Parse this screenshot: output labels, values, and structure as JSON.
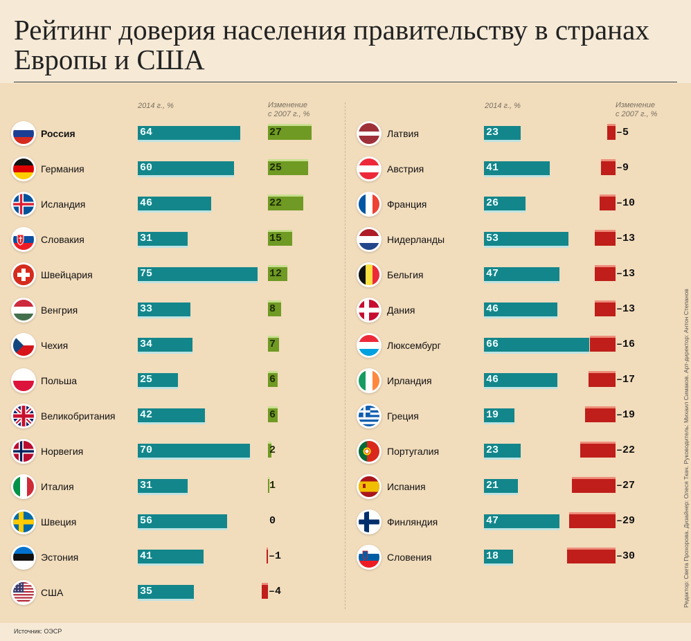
{
  "title": "Рейтинг доверия населения правительству в странах Европы и США",
  "source": "Источник: ОЭСР",
  "credits": "Редактор: Света Прохорова. Дизайнер: Олеся Ткач. Руководитель: Михаил Симаков. Арт-директор: Антон Степанов",
  "colors": {
    "bar": "#13868b",
    "positive": "#6f9a23",
    "negative": "#bf1e1a"
  },
  "chart_data": {
    "type": "bar",
    "title": "Рейтинг доверия населения правительству в странах Европы и США",
    "column_labels": {
      "value": "2014 г., %",
      "change_line1": "Изменение",
      "change_line2": "с 2007 г., %"
    },
    "series": [
      {
        "name": "2014 г., %"
      },
      {
        "name": "Изменение с 2007 г., %"
      }
    ],
    "left": [
      {
        "country": "Россия",
        "flag": "russia-flag",
        "value": 64,
        "change": 27,
        "change_label": "27",
        "bold": true
      },
      {
        "country": "Германия",
        "flag": "germany-flag",
        "value": 60,
        "change": 25,
        "change_label": "25"
      },
      {
        "country": "Исландия",
        "flag": "iceland-flag",
        "value": 46,
        "change": 22,
        "change_label": "22"
      },
      {
        "country": "Словакия",
        "flag": "slovakia-flag",
        "value": 31,
        "change": 15,
        "change_label": "15"
      },
      {
        "country": "Швейцария",
        "flag": "switzerland-flag",
        "value": 75,
        "change": 12,
        "change_label": "12"
      },
      {
        "country": "Венгрия",
        "flag": "hungary-flag",
        "value": 33,
        "change": 8,
        "change_label": "8"
      },
      {
        "country": "Чехия",
        "flag": "czech-flag",
        "value": 34,
        "change": 7,
        "change_label": "7"
      },
      {
        "country": "Польша",
        "flag": "poland-flag",
        "value": 25,
        "change": 6,
        "change_label": "6"
      },
      {
        "country": "Великобритания",
        "flag": "uk-flag",
        "value": 42,
        "change": 6,
        "change_label": "6"
      },
      {
        "country": "Норвегия",
        "flag": "norway-flag",
        "value": 70,
        "change": 2,
        "change_label": "2"
      },
      {
        "country": "Италия",
        "flag": "italy-flag",
        "value": 31,
        "change": 1,
        "change_label": "1"
      },
      {
        "country": "Швеция",
        "flag": "sweden-flag",
        "value": 56,
        "change": 0,
        "change_label": "0"
      },
      {
        "country": "Эстония",
        "flag": "estonia-flag",
        "value": 41,
        "change": -1,
        "change_label": "–1"
      },
      {
        "country": "США",
        "flag": "usa-flag",
        "value": 35,
        "change": -4,
        "change_label": "–4"
      }
    ],
    "right": [
      {
        "country": "Латвия",
        "flag": "latvia-flag",
        "value": 23,
        "change": -5,
        "change_label": "–5"
      },
      {
        "country": "Австрия",
        "flag": "austria-flag",
        "value": 41,
        "change": -9,
        "change_label": "–9"
      },
      {
        "country": "Франция",
        "flag": "france-flag",
        "value": 26,
        "change": -10,
        "change_label": "–10"
      },
      {
        "country": "Нидерланды",
        "flag": "netherlands-flag",
        "value": 53,
        "change": -13,
        "change_label": "–13"
      },
      {
        "country": "Бельгия",
        "flag": "belgium-flag",
        "value": 47,
        "change": -13,
        "change_label": "–13"
      },
      {
        "country": "Дания",
        "flag": "denmark-flag",
        "value": 46,
        "change": -13,
        "change_label": "–13"
      },
      {
        "country": "Люксембург",
        "flag": "luxembourg-flag",
        "value": 66,
        "change": -16,
        "change_label": "–16"
      },
      {
        "country": "Ирландия",
        "flag": "ireland-flag",
        "value": 46,
        "change": -17,
        "change_label": "–17"
      },
      {
        "country": "Греция",
        "flag": "greece-flag",
        "value": 19,
        "change": -19,
        "change_label": "–19"
      },
      {
        "country": "Португалия",
        "flag": "portugal-flag",
        "value": 23,
        "change": -22,
        "change_label": "–22"
      },
      {
        "country": "Испания",
        "flag": "spain-flag",
        "value": 21,
        "change": -27,
        "change_label": "–27"
      },
      {
        "country": "Финляндия",
        "flag": "finland-flag",
        "value": 47,
        "change": -29,
        "change_label": "–29"
      },
      {
        "country": "Словения",
        "flag": "slovenia-flag",
        "value": 18,
        "change": -30,
        "change_label": "–30"
      }
    ]
  }
}
